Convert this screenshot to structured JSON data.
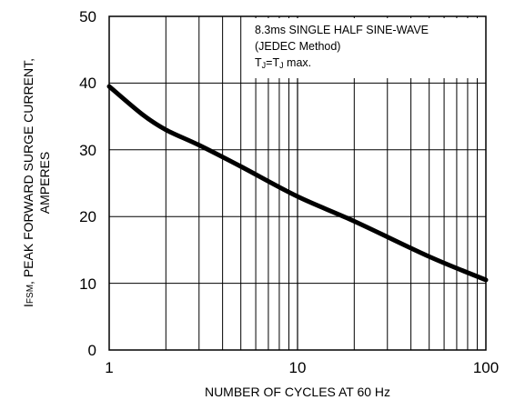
{
  "chart_data": {
    "type": "line",
    "xscale": "log",
    "xlim": [
      1,
      100
    ],
    "ylim": [
      0,
      50
    ],
    "x_ticks": [
      "1",
      "10",
      "100"
    ],
    "y_ticks": [
      "0",
      "10",
      "20",
      "30",
      "40",
      "50"
    ],
    "grid": true,
    "xlabel": "NUMBER OF CYCLES AT 60 Hz",
    "ylabel_sub_main": "I",
    "ylabel_sub": "FSM",
    "ylabel_line1_rest": ", PEAK FORWARD SURGE CURRENT,",
    "ylabel_line2": "AMPERES",
    "annotation": {
      "line1": "8.3ms SINGLE HALF SINE-WAVE",
      "line2": "(JEDEC Method)",
      "line3_t1": "T",
      "line3_j1": "J",
      "line3_mid": "=T",
      "line3_j2": "J",
      "line3_end": " max."
    },
    "series": [
      {
        "x": [
          1,
          1.5,
          2,
          3,
          5,
          10,
          20,
          50,
          100
        ],
        "y": [
          39.5,
          35.3,
          33,
          30.7,
          27.5,
          23,
          19.3,
          14,
          10.5
        ]
      }
    ]
  }
}
